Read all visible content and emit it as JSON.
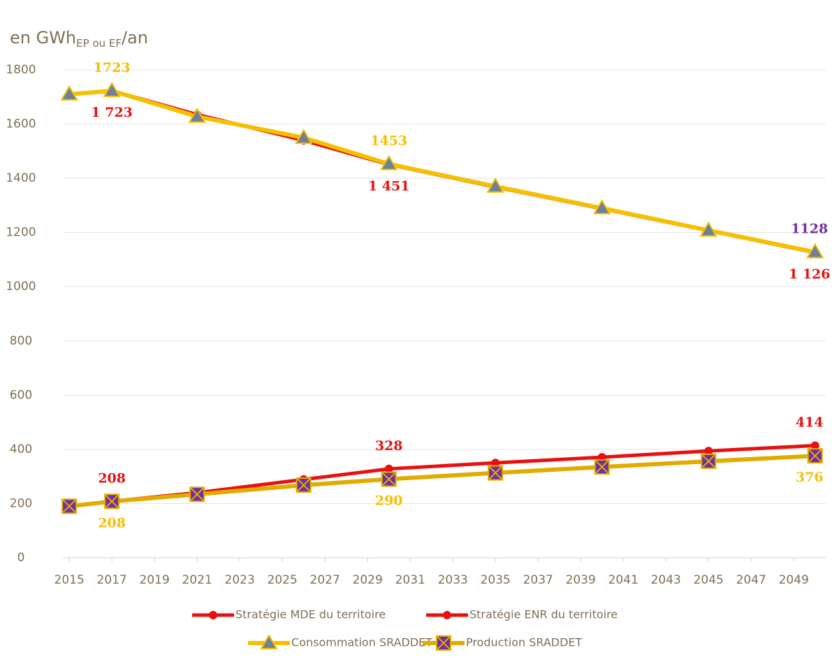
{
  "chart_data": {
    "type": "line",
    "y_label": "en GWh",
    "y_label_sub": "EP ou EF",
    "y_label_suffix": "/an",
    "x": [
      2015,
      2017,
      2021,
      2026,
      2030,
      2035,
      2040,
      2045,
      2050
    ],
    "xlim": [
      2014.7,
      2050.5
    ],
    "xticks": [
      2015,
      2017,
      2019,
      2021,
      2023,
      2025,
      2027,
      2029,
      2031,
      2033,
      2035,
      2037,
      2039,
      2041,
      2043,
      2045,
      2047,
      2049
    ],
    "ylim": [
      0,
      1800
    ],
    "yticks": [
      0,
      200,
      400,
      600,
      800,
      1000,
      1200,
      1400,
      1600,
      1800
    ],
    "grid": true,
    "legend": "bottom",
    "series": [
      {
        "name": "Stratégie MDE du territoire",
        "color": "#e81010",
        "marker": "circle",
        "marker_color": "#e81010",
        "values": [
          1710,
          1723,
          1635,
          1540,
          1451,
          1368,
          1288,
          1207,
          1126
        ],
        "value_labels": [
          null,
          "1 723",
          null,
          null,
          "1 451",
          null,
          null,
          null,
          "1 126"
        ],
        "value_label_colors": [
          null,
          "#e81010",
          null,
          null,
          "#e81010",
          null,
          null,
          null,
          "#e81010"
        ]
      },
      {
        "name": "Stratégie ENR du territoire",
        "color": "#e81010",
        "marker": "circle",
        "marker_color": "#e81010",
        "values": [
          191,
          208,
          240,
          289,
          328,
          350,
          371,
          394,
          414
        ],
        "value_labels": [
          null,
          "208",
          null,
          null,
          "328",
          null,
          null,
          null,
          "414"
        ],
        "value_label_colors": [
          null,
          "#e81010",
          null,
          null,
          "#e81010",
          null,
          null,
          null,
          "#e81010"
        ]
      },
      {
        "name": "Consommation SRADDET",
        "color": "#f5c000",
        "marker": "triangle",
        "marker_color": "#6e8199",
        "values": [
          1710,
          1723,
          1628,
          1550,
          1453,
          1370,
          1290,
          1208,
          1128
        ],
        "value_labels": [
          null,
          "1723",
          null,
          null,
          "1453",
          null,
          null,
          null,
          "1128"
        ],
        "value_label_colors": [
          null,
          "#f5c000",
          null,
          null,
          "#f5c000",
          null,
          null,
          null,
          "#7030a0"
        ]
      },
      {
        "name": "Production SRADDET",
        "color": "#e0ac00",
        "marker": "square-x",
        "marker_color": "#7030a0",
        "values": [
          190,
          208,
          234,
          268,
          290,
          313,
          335,
          356,
          376
        ],
        "value_labels": [
          null,
          "208",
          null,
          null,
          "290",
          null,
          null,
          null,
          "376"
        ],
        "value_label_colors": [
          null,
          "#f5c000",
          null,
          null,
          "#f5c000",
          null,
          null,
          null,
          "#f5c000"
        ]
      }
    ]
  }
}
